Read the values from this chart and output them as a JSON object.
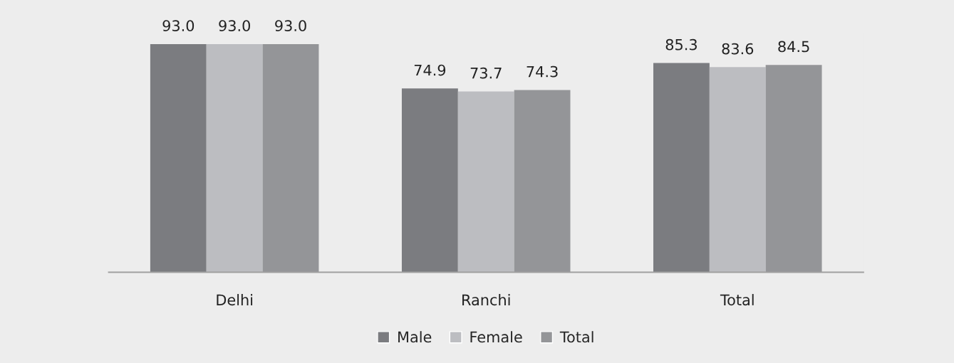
{
  "chart_data": {
    "type": "bar",
    "categories": [
      "Delhi",
      "Ranchi",
      "Total"
    ],
    "series": [
      {
        "name": "Male",
        "color": "#7b7c80",
        "values": [
          93.0,
          74.9,
          85.3
        ],
        "value_labels": [
          "93.0",
          "74.9",
          "85.3"
        ]
      },
      {
        "name": "Female",
        "color": "#bcbdc1",
        "values": [
          93.0,
          73.7,
          83.6
        ],
        "value_labels": [
          "93.0",
          "73.7",
          "83.6"
        ]
      },
      {
        "name": "Total",
        "color": "#949598",
        "values": [
          93.0,
          74.3,
          84.5
        ],
        "value_labels": [
          "93.0",
          "74.3",
          "84.5"
        ]
      }
    ],
    "legend": "bottom",
    "tick_labels": "x"
  }
}
